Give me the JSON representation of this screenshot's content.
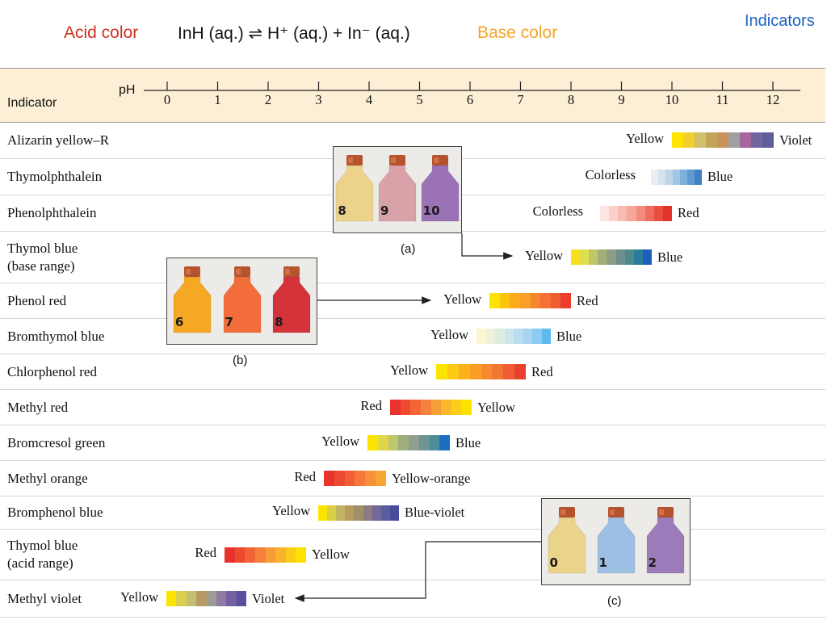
{
  "header": {
    "acid_color": "Acid color",
    "equation": "InH (aq.) ⇌ H⁺ (aq.) + In⁻ (aq.)",
    "base_color": "Base color",
    "page_title": "Indicators",
    "colors": {
      "acid": "#d0311e",
      "base": "#f3a526",
      "title": "#1f63c2",
      "header_band": "#fcefd6"
    }
  },
  "scale": {
    "indicator_label": "Indicator",
    "ph_label": "pH",
    "ticks": [
      "0",
      "1",
      "2",
      "3",
      "4",
      "5",
      "6",
      "7",
      "8",
      "9",
      "10",
      "11",
      "12"
    ]
  },
  "indicators": [
    {
      "name": "Alizarin yellow–R",
      "low": "Yellow",
      "high": "Violet",
      "colors": [
        "#fde500",
        "#f2ce2e",
        "#cfc06a",
        "#c2a55a",
        "#c8925b",
        "#9f9f9f",
        "#a3679d",
        "#74659f",
        "#5f5d9a"
      ]
    },
    {
      "name": "Thymolphthalein",
      "low": "Colorless",
      "high": "Blue",
      "colors": [
        "#ffffff",
        "#e9eef5",
        "#d5e3ee",
        "#bfd5ea",
        "#a3c5e5",
        "#7fb1dd",
        "#5f9ad0",
        "#3f82c6"
      ]
    },
    {
      "name": "Phenolphthalein",
      "low": "Colorless",
      "high": "Red",
      "colors": [
        "#ffffff",
        "#fde6e2",
        "#fbd0c8",
        "#f8bbb0",
        "#f6a69a",
        "#f38c7f",
        "#ef6d60",
        "#ea4d42",
        "#e2332b"
      ]
    },
    {
      "name": "Thymol blue\n(base range)",
      "low": "Yellow",
      "high": "Blue",
      "colors": [
        "#f8e11a",
        "#dede4e",
        "#bec86a",
        "#a3ae78",
        "#8e9d86",
        "#6f8e8e",
        "#4c8b8c",
        "#2a7b9a",
        "#1b5fbb"
      ]
    },
    {
      "name": "Phenol red",
      "low": "Yellow",
      "high": "Red",
      "colors": [
        "#fde300",
        "#fcc40d",
        "#fbac1c",
        "#f99e26",
        "#f8862f",
        "#f67234",
        "#f15c32",
        "#ea3d2c"
      ]
    },
    {
      "name": "Bromthymol blue",
      "low": "Yellow",
      "high": "Blue",
      "colors": [
        "#fbf6cf",
        "#ecf2dc",
        "#deedde",
        "#cde5e9",
        "#badcf0",
        "#a8d4f2",
        "#8fcaf2",
        "#5eb9ee"
      ]
    },
    {
      "name": "Chlorphenol red",
      "low": "Yellow",
      "high": "Red",
      "colors": [
        "#fde300",
        "#fcc912",
        "#fbb11d",
        "#f99d25",
        "#f7892d",
        "#f37532",
        "#ef5e33",
        "#e9402e"
      ]
    },
    {
      "name": "Methyl red",
      "low": "Red",
      "high": "Yellow",
      "colors": [
        "#e9322c",
        "#ee4a31",
        "#f26636",
        "#f5823c",
        "#f89e37",
        "#fbb82b",
        "#fccd19",
        "#fde200"
      ]
    },
    {
      "name": "Bromcresol green",
      "low": "Yellow",
      "high": "Blue",
      "colors": [
        "#fde300",
        "#dfd64c",
        "#bec96c",
        "#9fae7c",
        "#8f9f8e",
        "#6f9494",
        "#4d8c99",
        "#1a6fc0"
      ]
    },
    {
      "name": "Methyl orange",
      "low": "Red",
      "high": "Yellow-orange",
      "colors": [
        "#e9322c",
        "#ee4832",
        "#f25f36",
        "#f5783a",
        "#f89039",
        "#f9a533"
      ]
    },
    {
      "name": "Bromphenol blue",
      "low": "Yellow",
      "high": "Blue-violet",
      "colors": [
        "#fde300",
        "#d8ce47",
        "#c1b560",
        "#b99a5f",
        "#9f9068",
        "#8f7a82",
        "#6f6a98",
        "#5a5ca0",
        "#4a4c9a"
      ]
    },
    {
      "name": "Thymol blue\n(acid range)",
      "low": "Red",
      "high": "Yellow",
      "colors": [
        "#e9322c",
        "#ee4a31",
        "#f26436",
        "#f57f3b",
        "#f89a37",
        "#fab42c",
        "#fccb19",
        "#fde100"
      ]
    },
    {
      "name": "Methyl violet",
      "low": "Yellow",
      "high": "Violet",
      "colors": [
        "#fde300",
        "#dccf4f",
        "#c3c070",
        "#b79a66",
        "#9e9a94",
        "#8f7aa0",
        "#735fa2",
        "#5a4f9e"
      ]
    }
  ],
  "photos": {
    "a": {
      "caption": "(a)",
      "bottles": [
        {
          "number": "8",
          "color": "#ecd28b"
        },
        {
          "number": "9",
          "color": "#d9a2a9"
        },
        {
          "number": "10",
          "color": "#9b72b6"
        }
      ]
    },
    "b": {
      "caption": "(b)",
      "bottles": [
        {
          "number": "6",
          "color": "#f6a724"
        },
        {
          "number": "7",
          "color": "#f36d3a"
        },
        {
          "number": "8",
          "color": "#d4333a"
        }
      ]
    },
    "c": {
      "caption": "(c)",
      "bottles": [
        {
          "number": "0",
          "color": "#ead48c"
        },
        {
          "number": "1",
          "color": "#9cbfe3"
        },
        {
          "number": "2",
          "color": "#9d7bba"
        }
      ]
    },
    "cap_color": "#b5532f"
  }
}
